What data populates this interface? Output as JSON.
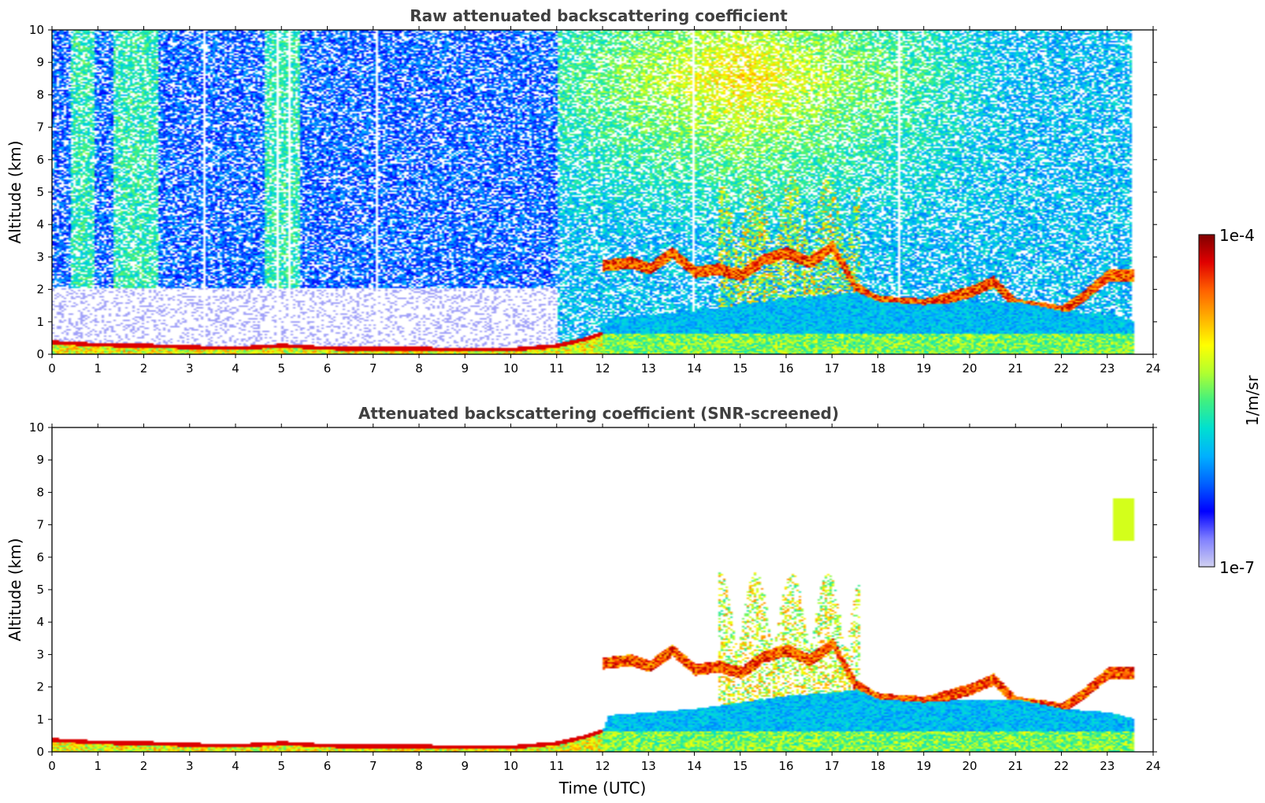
{
  "chart_data": [
    {
      "type": "heatmap",
      "title": "Raw attenuated backscattering coefficient",
      "xlabel": "",
      "ylabel": "Altitude (km)",
      "xlim": [
        0,
        24
      ],
      "ylim": [
        0,
        10
      ],
      "xticks": [
        "0",
        "1",
        "2",
        "3",
        "4",
        "5",
        "6",
        "7",
        "8",
        "9",
        "10",
        "11",
        "12",
        "13",
        "14",
        "15",
        "16",
        "17",
        "18",
        "19",
        "20",
        "21",
        "22",
        "23",
        "24"
      ],
      "yticks": [
        "0",
        "1",
        "2",
        "3",
        "4",
        "5",
        "6",
        "7",
        "8",
        "9",
        "10"
      ],
      "data_extent_hours": [
        0,
        23.55
      ],
      "features": {
        "boundary_layer_top_km": [
          [
            0,
            0.4
          ],
          [
            1,
            0.32
          ],
          [
            2,
            0.3
          ],
          [
            3,
            0.25
          ],
          [
            4,
            0.22
          ],
          [
            5,
            0.3
          ],
          [
            6,
            0.22
          ],
          [
            7,
            0.2
          ],
          [
            8,
            0.2
          ],
          [
            9,
            0.18
          ],
          [
            10,
            0.18
          ],
          [
            11,
            0.3
          ],
          [
            11.6,
            0.5
          ],
          [
            12,
            0.7
          ],
          [
            12.1,
            1.1
          ],
          [
            13,
            1.2
          ],
          [
            14,
            1.3
          ],
          [
            15,
            1.5
          ],
          [
            16,
            1.7
          ],
          [
            17,
            1.8
          ],
          [
            17.5,
            1.9
          ],
          [
            18,
            1.6
          ],
          [
            19,
            1.5
          ],
          [
            20,
            1.6
          ],
          [
            21,
            1.6
          ],
          [
            22,
            1.3
          ],
          [
            23,
            1.2
          ],
          [
            23.55,
            1.0
          ]
        ],
        "cloud_layer_km": [
          [
            12,
            2.7
          ],
          [
            12.6,
            2.8
          ],
          [
            13,
            2.6
          ],
          [
            13.5,
            3.1
          ],
          [
            14,
            2.5
          ],
          [
            14.5,
            2.6
          ],
          [
            15,
            2.4
          ],
          [
            15.5,
            2.9
          ],
          [
            16,
            3.1
          ],
          [
            16.5,
            2.8
          ],
          [
            17,
            3.3
          ],
          [
            17.5,
            2.0
          ],
          [
            18,
            1.6
          ],
          [
            19,
            1.5
          ],
          [
            20,
            1.9
          ],
          [
            20.5,
            2.2
          ],
          [
            21,
            1.5
          ],
          [
            22,
            1.3
          ],
          [
            22.5,
            1.8
          ],
          [
            23,
            2.4
          ]
        ]
      }
    },
    {
      "type": "heatmap",
      "title": "Attenuated backscattering coefficient (SNR-screened)",
      "xlabel": "Time (UTC)",
      "ylabel": "Altitude (km)",
      "xlim": [
        0,
        24
      ],
      "ylim": [
        0,
        10
      ],
      "xticks": [
        "0",
        "1",
        "2",
        "3",
        "4",
        "5",
        "6",
        "7",
        "8",
        "9",
        "10",
        "11",
        "12",
        "13",
        "14",
        "15",
        "16",
        "17",
        "18",
        "19",
        "20",
        "21",
        "22",
        "23",
        "24"
      ],
      "yticks": [
        "0",
        "1",
        "2",
        "3",
        "4",
        "5",
        "6",
        "7",
        "8",
        "9",
        "10"
      ],
      "data_extent_hours": [
        0,
        23.55
      ],
      "features": {
        "isolated_cloud_km": {
          "time": 23.3,
          "altitude": [
            6.5,
            7.8
          ]
        }
      }
    }
  ],
  "colorbar": {
    "label": "1/m/sr",
    "max_label": "1e-4",
    "min_label": "1e-7",
    "scale": "log",
    "colors": [
      "#d0d0f0",
      "#8080ff",
      "#0000ff",
      "#0060ff",
      "#00b0ff",
      "#00e0d0",
      "#40f080",
      "#b0ff30",
      "#ffff00",
      "#ffb000",
      "#ff6000",
      "#e00000",
      "#800000"
    ]
  }
}
